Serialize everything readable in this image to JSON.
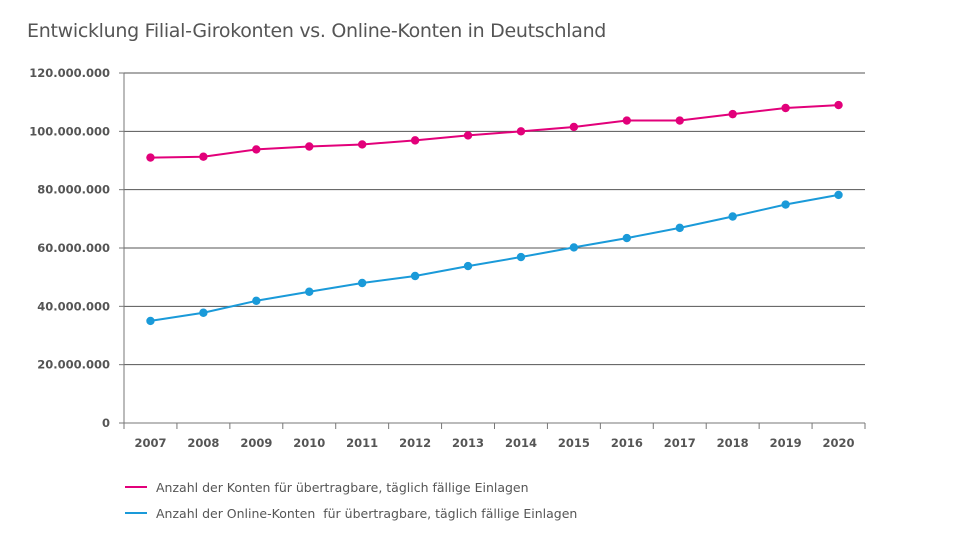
{
  "chart_data": {
    "type": "line",
    "title": "Entwicklung Filial-Girokonten vs. Online-Konten in Deutschland",
    "xlabel": "",
    "ylabel": "",
    "categories": [
      "2007",
      "2008",
      "2009",
      "2010",
      "2011",
      "2012",
      "2013",
      "2014",
      "2015",
      "2016",
      "2017",
      "2018",
      "2019",
      "2020"
    ],
    "ylim": [
      0,
      120000000
    ],
    "yticks": [
      0,
      20000000,
      40000000,
      60000000,
      80000000,
      100000000,
      120000000
    ],
    "ytick_labels": [
      "0",
      "20.000.000",
      "40.000.000",
      "60.000.000",
      "80.000.000",
      "100.000.000",
      "120.000.000"
    ],
    "grid": true,
    "legend_position": "bottom-left",
    "series": [
      {
        "name": "Anzahl der Konten für übertragbare, täglich fällige Einlagen",
        "color": "#e2007a",
        "values": [
          91000000,
          91300000,
          93800000,
          94800000,
          95500000,
          96900000,
          98600000,
          100000000,
          101500000,
          103700000,
          103700000,
          105900000,
          108000000,
          109000000
        ]
      },
      {
        "name": "Anzahl der Online-Konten  für übertragbare, täglich fällige Einlagen",
        "color": "#1a9ad9",
        "values": [
          35000000,
          37800000,
          41900000,
          45000000,
          48000000,
          50400000,
          53800000,
          56900000,
          60200000,
          63400000,
          66900000,
          70800000,
          74900000,
          78200000
        ]
      }
    ]
  }
}
